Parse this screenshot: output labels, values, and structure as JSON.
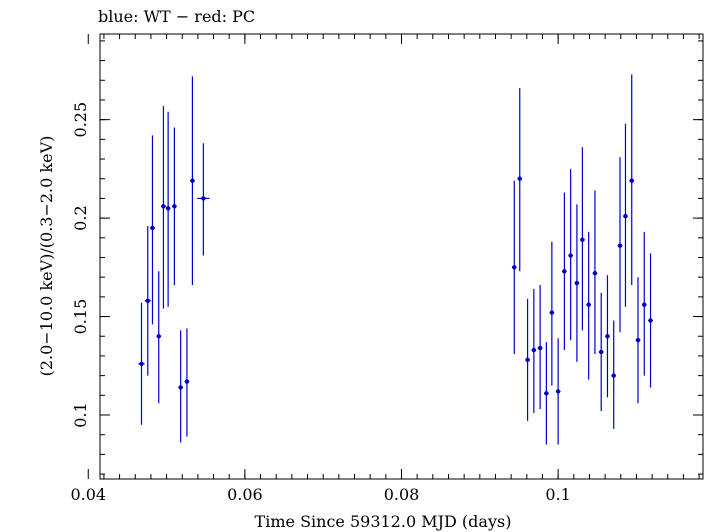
{
  "chart_data": {
    "type": "scatter",
    "title": "blue: WT − red: PC",
    "xlabel": "Time Since 59312.0 MJD (days)",
    "ylabel": "(2.0−10.0 keV)/(0.3−2.0 keV)",
    "xlim": [
      0.0415,
      0.1185
    ],
    "ylim": [
      0.0675,
      0.2935
    ],
    "x_ticks": [
      {
        "value": 0.04,
        "label": "0.04"
      },
      {
        "value": 0.06,
        "label": "0.06"
      },
      {
        "value": 0.08,
        "label": "0.08"
      },
      {
        "value": 0.1,
        "label": "0.1"
      }
    ],
    "y_ticks": [
      {
        "value": 0.1,
        "label": "0.1"
      },
      {
        "value": 0.15,
        "label": "0.15"
      },
      {
        "value": 0.2,
        "label": "0.2"
      },
      {
        "value": 0.25,
        "label": "0.25"
      }
    ],
    "x_minor_step": 0.002,
    "y_minor_step": 0.01,
    "grid": false,
    "legend": "none",
    "series": [
      {
        "color": "#0000cc",
        "points": [
          {
            "x": 0.0468,
            "y": 0.126,
            "ylo": 0.095,
            "yhi": 0.157,
            "xerr": 0.0004
          },
          {
            "x": 0.0476,
            "y": 0.158,
            "ylo": 0.12,
            "yhi": 0.196,
            "xerr": 0.0004
          },
          {
            "x": 0.0482,
            "y": 0.195,
            "ylo": 0.146,
            "yhi": 0.242,
            "xerr": 0.0003
          },
          {
            "x": 0.049,
            "y": 0.14,
            "ylo": 0.106,
            "yhi": 0.173,
            "xerr": 0.0003
          },
          {
            "x": 0.0496,
            "y": 0.206,
            "ylo": 0.154,
            "yhi": 0.257,
            "xerr": 0.0003
          },
          {
            "x": 0.0502,
            "y": 0.205,
            "ylo": 0.155,
            "yhi": 0.254,
            "xerr": 0.0003
          },
          {
            "x": 0.051,
            "y": 0.206,
            "ylo": 0.166,
            "yhi": 0.246,
            "xerr": 0.0003
          },
          {
            "x": 0.0518,
            "y": 0.114,
            "ylo": 0.086,
            "yhi": 0.143,
            "xerr": 0.0003
          },
          {
            "x": 0.0526,
            "y": 0.117,
            "ylo": 0.089,
            "yhi": 0.144,
            "xerr": 0.0003
          },
          {
            "x": 0.0533,
            "y": 0.219,
            "ylo": 0.166,
            "yhi": 0.272,
            "xerr": 0.0003
          },
          {
            "x": 0.0547,
            "y": 0.21,
            "ylo": 0.181,
            "yhi": 0.238,
            "xerr": 0.0008
          },
          {
            "x": 0.0944,
            "y": 0.175,
            "ylo": 0.131,
            "yhi": 0.219,
            "xerr": 0.0003
          },
          {
            "x": 0.0951,
            "y": 0.22,
            "ylo": 0.173,
            "yhi": 0.266,
            "xerr": 0.0003
          },
          {
            "x": 0.0961,
            "y": 0.128,
            "ylo": 0.097,
            "yhi": 0.159,
            "xerr": 0.0003
          },
          {
            "x": 0.0969,
            "y": 0.133,
            "ylo": 0.101,
            "yhi": 0.164,
            "xerr": 0.0003
          },
          {
            "x": 0.0977,
            "y": 0.134,
            "ylo": 0.103,
            "yhi": 0.166,
            "xerr": 0.0003
          },
          {
            "x": 0.0985,
            "y": 0.111,
            "ylo": 0.085,
            "yhi": 0.137,
            "xerr": 0.0003
          },
          {
            "x": 0.0992,
            "y": 0.152,
            "ylo": 0.115,
            "yhi": 0.188,
            "xerr": 0.0003
          },
          {
            "x": 0.1,
            "y": 0.112,
            "ylo": 0.085,
            "yhi": 0.139,
            "xerr": 0.0003
          },
          {
            "x": 0.1008,
            "y": 0.173,
            "ylo": 0.133,
            "yhi": 0.213,
            "xerr": 0.0003
          },
          {
            "x": 0.1016,
            "y": 0.181,
            "ylo": 0.138,
            "yhi": 0.225,
            "xerr": 0.0003
          },
          {
            "x": 0.1024,
            "y": 0.167,
            "ylo": 0.127,
            "yhi": 0.207,
            "xerr": 0.0003
          },
          {
            "x": 0.1031,
            "y": 0.189,
            "ylo": 0.143,
            "yhi": 0.236,
            "xerr": 0.0003
          },
          {
            "x": 0.1039,
            "y": 0.156,
            "ylo": 0.118,
            "yhi": 0.193,
            "xerr": 0.0003
          },
          {
            "x": 0.1047,
            "y": 0.172,
            "ylo": 0.131,
            "yhi": 0.214,
            "xerr": 0.0003
          },
          {
            "x": 0.1055,
            "y": 0.132,
            "ylo": 0.102,
            "yhi": 0.162,
            "xerr": 0.0003
          },
          {
            "x": 0.1063,
            "y": 0.14,
            "ylo": 0.109,
            "yhi": 0.171,
            "xerr": 0.0003
          },
          {
            "x": 0.1071,
            "y": 0.12,
            "ylo": 0.093,
            "yhi": 0.148,
            "xerr": 0.0003
          },
          {
            "x": 0.1079,
            "y": 0.186,
            "ylo": 0.142,
            "yhi": 0.231,
            "xerr": 0.0003
          },
          {
            "x": 0.1086,
            "y": 0.201,
            "ylo": 0.155,
            "yhi": 0.248,
            "xerr": 0.0003
          },
          {
            "x": 0.1094,
            "y": 0.219,
            "ylo": 0.166,
            "yhi": 0.273,
            "xerr": 0.0003
          },
          {
            "x": 0.1102,
            "y": 0.138,
            "ylo": 0.106,
            "yhi": 0.17,
            "xerr": 0.0003
          },
          {
            "x": 0.111,
            "y": 0.156,
            "ylo": 0.12,
            "yhi": 0.193,
            "xerr": 0.0003
          },
          {
            "x": 0.1118,
            "y": 0.148,
            "ylo": 0.114,
            "yhi": 0.182,
            "xerr": 0.0003
          }
        ]
      }
    ]
  }
}
